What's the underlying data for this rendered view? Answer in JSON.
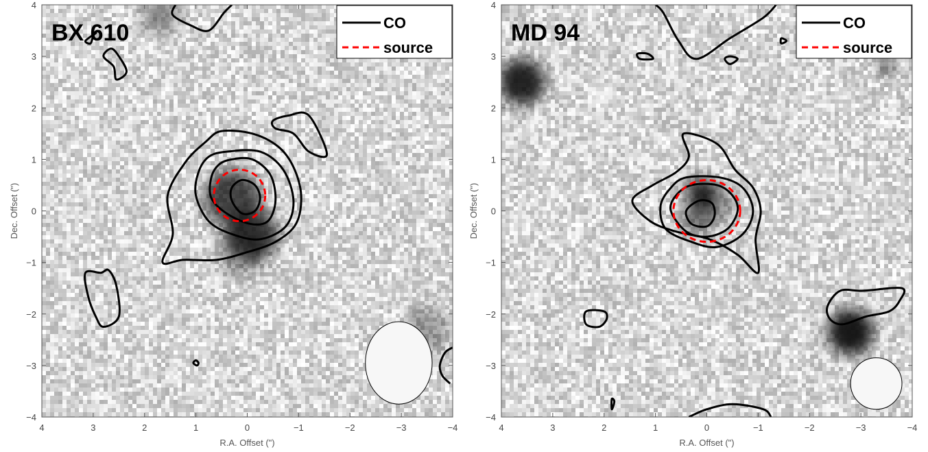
{
  "chart_data": [
    {
      "type": "contour",
      "title": "BX 610",
      "xlabel": "R.A. Offset (\")",
      "ylabel": "Dec. Offset (\")",
      "xlim": [
        4,
        -4
      ],
      "ylim": [
        -4,
        4
      ],
      "xticks": [
        4,
        3,
        2,
        1,
        0,
        -1,
        -2,
        -3,
        -4
      ],
      "yticks": [
        -4,
        -3,
        -2,
        -1,
        0,
        1,
        2,
        3,
        4
      ],
      "xtick_labels": [
        "4",
        "3",
        "2",
        "1",
        "0",
        "−1",
        "−2",
        "−3",
        "−4"
      ],
      "ytick_labels": [
        "−4",
        "−3",
        "−2",
        "−1",
        "0",
        "1",
        "2",
        "3",
        "4"
      ],
      "legend": {
        "placement": "top-right",
        "entries": [
          "CO",
          "source"
        ]
      },
      "colors": {
        "co": "#000000",
        "source": "#ff0000",
        "beam_fill": "#f7f7f7"
      },
      "source_ellipse": {
        "x": 0.15,
        "y": 0.3,
        "rx": 0.5,
        "ry": 0.5
      },
      "beam": {
        "x": -2.95,
        "y": -2.95,
        "rx": 0.65,
        "ry": 0.8
      },
      "blobs": [
        {
          "x": 0.3,
          "y": 0.25,
          "r": 0.55,
          "a": 0.75
        },
        {
          "x": -0.1,
          "y": -0.45,
          "r": 0.5,
          "a": 0.8
        },
        {
          "x": 0.1,
          "y": -0.75,
          "r": 0.5,
          "a": 0.4
        },
        {
          "x": 1.7,
          "y": 3.8,
          "r": 0.35,
          "a": 0.45
        },
        {
          "x": -3.5,
          "y": -2.3,
          "r": 0.45,
          "a": 0.35
        }
      ],
      "contours": [
        [
          [
            0.1,
            0.6
          ],
          [
            -0.15,
            0.5
          ],
          [
            -0.25,
            0.25
          ],
          [
            -0.15,
            0.0
          ],
          [
            0.1,
            -0.05
          ],
          [
            0.3,
            0.2
          ],
          [
            0.3,
            0.45
          ]
        ],
        [
          [
            0.3,
            1.0
          ],
          [
            -0.1,
            1.0
          ],
          [
            -0.45,
            0.7
          ],
          [
            -0.55,
            0.2
          ],
          [
            -0.4,
            -0.2
          ],
          [
            -0.05,
            -0.25
          ],
          [
            0.4,
            -0.05
          ],
          [
            0.7,
            0.25
          ],
          [
            0.7,
            0.65
          ],
          [
            0.55,
            0.9
          ]
        ],
        [
          [
            0.4,
            1.15
          ],
          [
            -0.25,
            1.15
          ],
          [
            -0.7,
            0.8
          ],
          [
            -0.9,
            0.2
          ],
          [
            -0.75,
            -0.3
          ],
          [
            -0.25,
            -0.55
          ],
          [
            0.3,
            -0.45
          ],
          [
            0.75,
            -0.2
          ],
          [
            1.0,
            0.3
          ],
          [
            0.95,
            0.75
          ],
          [
            0.75,
            1.05
          ]
        ],
        [
          [
            0.5,
            1.55
          ],
          [
            -0.1,
            1.5
          ],
          [
            -0.6,
            1.25
          ],
          [
            -0.9,
            0.85
          ],
          [
            -1.05,
            0.3
          ],
          [
            -0.95,
            -0.25
          ],
          [
            -0.55,
            -0.6
          ],
          [
            0.0,
            -0.8
          ],
          [
            0.6,
            -0.95
          ],
          [
            1.25,
            -0.95
          ],
          [
            1.65,
            -1.0
          ],
          [
            1.45,
            -0.45
          ],
          [
            1.55,
            0.3
          ],
          [
            1.2,
            0.95
          ],
          [
            0.8,
            1.35
          ]
        ],
        [
          [
            -0.5,
            1.75
          ],
          [
            -0.8,
            1.85
          ],
          [
            -1.2,
            1.85
          ],
          [
            -1.55,
            1.1
          ],
          [
            -1.2,
            1.15
          ],
          [
            -0.9,
            1.5
          ],
          [
            -0.55,
            1.6
          ]
        ],
        [
          [
            2.65,
            3.15
          ],
          [
            2.5,
            3.0
          ],
          [
            2.35,
            2.7
          ],
          [
            2.55,
            2.55
          ],
          [
            2.6,
            2.8
          ],
          [
            2.8,
            3.0
          ]
        ],
        [
          [
            2.95,
            3.45
          ],
          [
            3.15,
            3.3
          ],
          [
            3.05,
            3.25
          ],
          [
            3.0,
            3.4
          ]
        ],
        [
          [
            2.85,
            -1.2
          ],
          [
            3.15,
            -1.2
          ],
          [
            3.1,
            -1.65
          ],
          [
            2.95,
            -2.05
          ],
          [
            2.8,
            -2.25
          ],
          [
            2.5,
            -2.05
          ],
          [
            2.55,
            -1.45
          ],
          [
            2.7,
            -1.15
          ]
        ],
        [
          [
            0.98,
            -3.0
          ],
          [
            1.05,
            -2.95
          ],
          [
            1.0,
            -2.9
          ],
          [
            0.95,
            -2.95
          ]
        ]
      ],
      "open_contours": [
        [
          [
            1.4,
            4.0
          ],
          [
            1.45,
            3.8
          ],
          [
            1.1,
            3.6
          ],
          [
            0.75,
            3.5
          ],
          [
            0.45,
            3.85
          ],
          [
            0.3,
            4.0
          ]
        ],
        [
          [
            -3.95,
            -3.35
          ],
          [
            -3.8,
            -3.2
          ],
          [
            -3.75,
            -3.0
          ],
          [
            -3.85,
            -2.75
          ],
          [
            -4.0,
            -2.65
          ]
        ]
      ]
    },
    {
      "type": "contour",
      "title": "MD 94",
      "xlabel": "R.A. Offset (\")",
      "ylabel": "Dec. Offset (\")",
      "xlim": [
        4,
        -4
      ],
      "ylim": [
        -4,
        4
      ],
      "xticks": [
        4,
        3,
        2,
        1,
        0,
        -1,
        -2,
        -3,
        -4
      ],
      "yticks": [
        -4,
        -3,
        -2,
        -1,
        0,
        1,
        2,
        3,
        4
      ],
      "xtick_labels": [
        "4",
        "3",
        "2",
        "1",
        "0",
        "−1",
        "−2",
        "−3",
        "−4"
      ],
      "ytick_labels": [
        "−4",
        "−3",
        "−2",
        "−1",
        "0",
        "1",
        "2",
        "3",
        "4"
      ],
      "legend": {
        "placement": "top-right",
        "entries": [
          "CO",
          "source"
        ]
      },
      "colors": {
        "co": "#000000",
        "source": "#ff0000",
        "beam_fill": "#f7f7f7"
      },
      "source_ellipse": {
        "x": 0.0,
        "y": 0.0,
        "rx": 0.65,
        "ry": 0.6
      },
      "beam": {
        "x": -3.3,
        "y": -3.35,
        "rx": 0.5,
        "ry": 0.5
      },
      "blobs": [
        {
          "x": 3.6,
          "y": 2.5,
          "r": 0.45,
          "a": 0.9
        },
        {
          "x": 0.1,
          "y": 0.35,
          "r": 0.3,
          "a": 0.9
        },
        {
          "x": 0.2,
          "y": -0.15,
          "r": 0.3,
          "a": 0.55
        },
        {
          "x": -0.2,
          "y": 0.1,
          "r": 0.35,
          "a": 0.4
        },
        {
          "x": -2.8,
          "y": -2.35,
          "r": 0.45,
          "a": 0.95
        },
        {
          "x": -3.5,
          "y": 2.8,
          "r": 0.15,
          "a": 0.85
        }
      ],
      "contours": [
        [
          [
            0.15,
            0.2
          ],
          [
            -0.1,
            0.15
          ],
          [
            -0.15,
            -0.1
          ],
          [
            0.0,
            -0.3
          ],
          [
            0.3,
            -0.25
          ],
          [
            0.4,
            0.0
          ]
        ],
        [
          [
            0.3,
            0.5
          ],
          [
            -0.2,
            0.5
          ],
          [
            -0.5,
            0.3
          ],
          [
            -0.6,
            0.0
          ],
          [
            -0.4,
            -0.35
          ],
          [
            0.0,
            -0.5
          ],
          [
            0.4,
            -0.4
          ],
          [
            0.7,
            0.0
          ],
          [
            0.6,
            0.3
          ]
        ],
        [
          [
            0.4,
            0.65
          ],
          [
            -0.25,
            0.65
          ],
          [
            -0.7,
            0.45
          ],
          [
            -0.9,
            0.0
          ],
          [
            -0.7,
            -0.45
          ],
          [
            -0.2,
            -0.7
          ],
          [
            0.3,
            -0.6
          ],
          [
            0.8,
            -0.35
          ],
          [
            0.9,
            0.1
          ],
          [
            0.7,
            0.45
          ]
        ],
        [
          [
            0.45,
            1.5
          ],
          [
            -0.2,
            1.3
          ],
          [
            -0.55,
            0.8
          ],
          [
            -0.9,
            0.45
          ],
          [
            -1.05,
            0.0
          ],
          [
            -0.95,
            -0.55
          ],
          [
            -1.0,
            -1.2
          ],
          [
            -0.6,
            -0.85
          ],
          [
            -0.05,
            -0.55
          ],
          [
            0.6,
            -0.4
          ],
          [
            1.1,
            -0.2
          ],
          [
            1.45,
            0.2
          ],
          [
            1.05,
            0.5
          ],
          [
            0.6,
            0.75
          ],
          [
            0.35,
            1.05
          ]
        ],
        [
          [
            -2.35,
            -1.85
          ],
          [
            -2.6,
            -1.55
          ],
          [
            -3.05,
            -1.55
          ],
          [
            -3.8,
            -1.5
          ],
          [
            -3.75,
            -1.75
          ],
          [
            -3.55,
            -1.95
          ],
          [
            -3.1,
            -2.05
          ],
          [
            -2.65,
            -2.2
          ],
          [
            -2.4,
            -2.1
          ]
        ],
        [
          [
            1.35,
            3.05
          ],
          [
            1.15,
            3.05
          ],
          [
            1.05,
            2.95
          ],
          [
            1.3,
            2.95
          ]
        ],
        [
          [
            -0.45,
            3.0
          ],
          [
            -0.6,
            2.95
          ],
          [
            -0.45,
            2.85
          ],
          [
            -0.35,
            2.95
          ]
        ],
        [
          [
            -1.45,
            3.35
          ],
          [
            -1.55,
            3.3
          ],
          [
            -1.45,
            3.25
          ]
        ],
        [
          [
            2.0,
            -1.95
          ],
          [
            2.35,
            -1.95
          ],
          [
            2.35,
            -2.2
          ],
          [
            2.1,
            -2.25
          ],
          [
            1.95,
            -2.1
          ]
        ],
        [
          [
            1.85,
            -3.65
          ],
          [
            1.85,
            -3.85
          ],
          [
            1.8,
            -3.7
          ]
        ]
      ],
      "open_contours": [
        [
          [
            1.0,
            4.0
          ],
          [
            0.85,
            3.85
          ],
          [
            0.55,
            3.3
          ],
          [
            0.2,
            2.95
          ],
          [
            -0.45,
            3.35
          ],
          [
            -1.1,
            3.75
          ],
          [
            -1.35,
            4.0
          ]
        ],
        [
          [
            0.35,
            -4.0
          ],
          [
            0.0,
            -3.85
          ],
          [
            -0.5,
            -3.75
          ],
          [
            -1.1,
            -3.85
          ],
          [
            -1.25,
            -4.0
          ]
        ]
      ]
    }
  ]
}
